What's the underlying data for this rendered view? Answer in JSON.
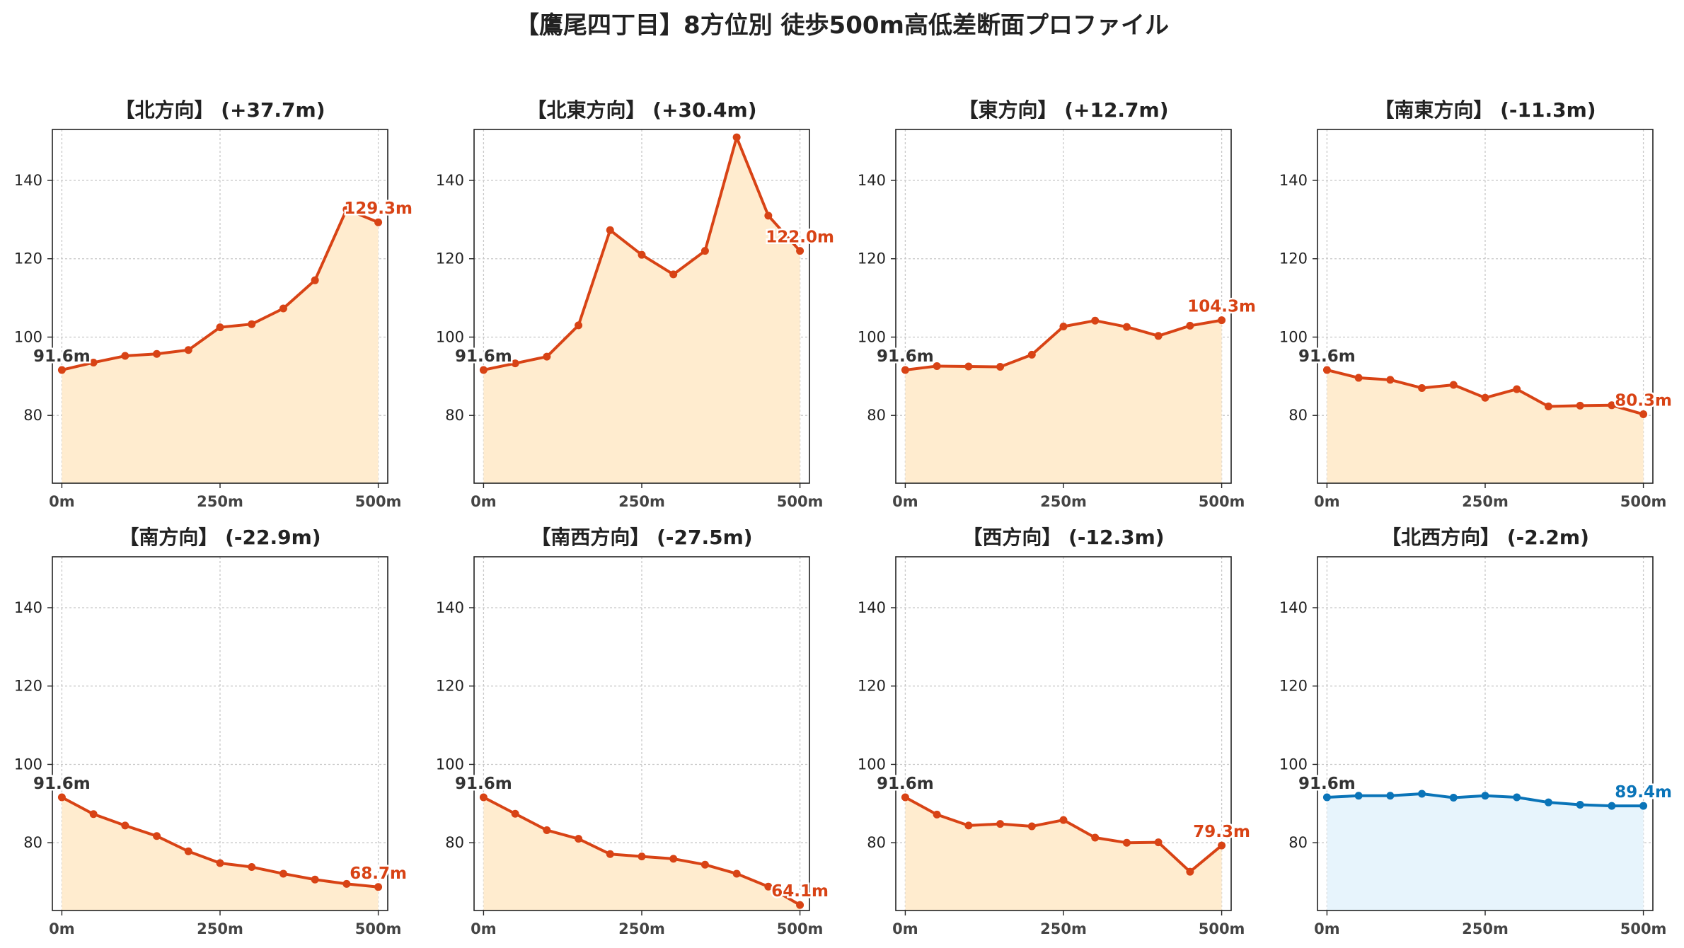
{
  "figure": {
    "title": "【鷹尾四丁目】8方位別 徒歩500m高低差断面プロファイル"
  },
  "colors": {
    "rise": "#d84315",
    "rise_fill": "#ffeccf",
    "flat": "#0a74b8",
    "flat_fill": "#e7f4fc",
    "start_label": "#333333",
    "grid": "#c8c8c8",
    "axis": "#222222"
  },
  "chart_data": [
    {
      "type": "area",
      "title": "【北方向】 (+37.7m)",
      "x": [
        0,
        50,
        100,
        150,
        200,
        250,
        300,
        350,
        400,
        450,
        500
      ],
      "y": [
        91.6,
        93.5,
        95.2,
        95.7,
        96.7,
        102.5,
        103.3,
        107.3,
        114.5,
        132.6,
        129.3
      ],
      "color": "rise",
      "start_label": "91.6m",
      "end_label": "129.3m",
      "xticks": [
        {
          "v": 0,
          "label": "0m"
        },
        {
          "v": 250,
          "label": "250m"
        },
        {
          "v": 500,
          "label": "500m"
        }
      ],
      "yticks": [
        80,
        100,
        120,
        140
      ],
      "xlim": [
        -15,
        515
      ],
      "ylim": [
        62.7,
        153
      ],
      "grid": true
    },
    {
      "type": "area",
      "title": "【北東方向】 (+30.4m)",
      "x": [
        0,
        50,
        100,
        150,
        200,
        250,
        300,
        350,
        400,
        450,
        500
      ],
      "y": [
        91.6,
        93.3,
        95.0,
        103.0,
        127.3,
        121.0,
        116.0,
        122.0,
        151.0,
        131.0,
        122.0
      ],
      "color": "rise",
      "start_label": "91.6m",
      "end_label": "122.0m",
      "xticks": [
        {
          "v": 0,
          "label": "0m"
        },
        {
          "v": 250,
          "label": "250m"
        },
        {
          "v": 500,
          "label": "500m"
        }
      ],
      "yticks": [
        80,
        100,
        120,
        140
      ],
      "xlim": [
        -15,
        515
      ],
      "ylim": [
        62.7,
        153
      ],
      "grid": true
    },
    {
      "type": "area",
      "title": "【東方向】 (+12.7m)",
      "x": [
        0,
        50,
        100,
        150,
        200,
        250,
        300,
        350,
        400,
        450,
        500
      ],
      "y": [
        91.6,
        92.6,
        92.5,
        92.4,
        95.5,
        102.7,
        104.2,
        102.6,
        100.3,
        102.9,
        104.3
      ],
      "color": "rise",
      "start_label": "91.6m",
      "end_label": "104.3m",
      "xticks": [
        {
          "v": 0,
          "label": "0m"
        },
        {
          "v": 250,
          "label": "250m"
        },
        {
          "v": 500,
          "label": "500m"
        }
      ],
      "yticks": [
        80,
        100,
        120,
        140
      ],
      "xlim": [
        -15,
        515
      ],
      "ylim": [
        62.7,
        153
      ],
      "grid": true
    },
    {
      "type": "area",
      "title": "【南東方向】 (-11.3m)",
      "x": [
        0,
        50,
        100,
        150,
        200,
        250,
        300,
        350,
        400,
        450,
        500
      ],
      "y": [
        91.6,
        89.6,
        89.1,
        87.0,
        87.8,
        84.5,
        86.7,
        82.3,
        82.5,
        82.6,
        80.3
      ],
      "color": "rise",
      "start_label": "91.6m",
      "end_label": "80.3m",
      "xticks": [
        {
          "v": 0,
          "label": "0m"
        },
        {
          "v": 250,
          "label": "250m"
        },
        {
          "v": 500,
          "label": "500m"
        }
      ],
      "yticks": [
        80,
        100,
        120,
        140
      ],
      "xlim": [
        -15,
        515
      ],
      "ylim": [
        62.7,
        153
      ],
      "grid": true
    },
    {
      "type": "area",
      "title": "【南方向】 (-22.9m)",
      "x": [
        0,
        50,
        100,
        150,
        200,
        250,
        300,
        350,
        400,
        450,
        500
      ],
      "y": [
        91.6,
        87.3,
        84.4,
        81.7,
        77.8,
        74.8,
        73.8,
        72.1,
        70.6,
        69.5,
        68.7
      ],
      "color": "rise",
      "start_label": "91.6m",
      "end_label": "68.7m",
      "xticks": [
        {
          "v": 0,
          "label": "0m"
        },
        {
          "v": 250,
          "label": "250m"
        },
        {
          "v": 500,
          "label": "500m"
        }
      ],
      "yticks": [
        80,
        100,
        120,
        140
      ],
      "xlim": [
        -15,
        515
      ],
      "ylim": [
        62.7,
        153
      ],
      "grid": true
    },
    {
      "type": "area",
      "title": "【南西方向】 (-27.5m)",
      "x": [
        0,
        50,
        100,
        150,
        200,
        250,
        300,
        350,
        400,
        450,
        500
      ],
      "y": [
        91.6,
        87.4,
        83.2,
        81.0,
        77.1,
        76.5,
        75.9,
        74.4,
        72.1,
        68.8,
        64.1
      ],
      "color": "rise",
      "start_label": "91.6m",
      "end_label": "64.1m",
      "xticks": [
        {
          "v": 0,
          "label": "0m"
        },
        {
          "v": 250,
          "label": "250m"
        },
        {
          "v": 500,
          "label": "500m"
        }
      ],
      "yticks": [
        80,
        100,
        120,
        140
      ],
      "xlim": [
        -15,
        515
      ],
      "ylim": [
        62.7,
        153
      ],
      "grid": true
    },
    {
      "type": "area",
      "title": "【西方向】 (-12.3m)",
      "x": [
        0,
        50,
        100,
        150,
        200,
        250,
        300,
        350,
        400,
        450,
        500
      ],
      "y": [
        91.6,
        87.2,
        84.4,
        84.8,
        84.2,
        85.8,
        81.3,
        80.0,
        80.1,
        72.6,
        79.3
      ],
      "color": "rise",
      "start_label": "91.6m",
      "end_label": "79.3m",
      "xticks": [
        {
          "v": 0,
          "label": "0m"
        },
        {
          "v": 250,
          "label": "250m"
        },
        {
          "v": 500,
          "label": "500m"
        }
      ],
      "yticks": [
        80,
        100,
        120,
        140
      ],
      "xlim": [
        -15,
        515
      ],
      "ylim": [
        62.7,
        153
      ],
      "grid": true
    },
    {
      "type": "area",
      "title": "【北西方向】 (-2.2m)",
      "x": [
        0,
        50,
        100,
        150,
        200,
        250,
        300,
        350,
        400,
        450,
        500
      ],
      "y": [
        91.6,
        92.0,
        92.0,
        92.5,
        91.5,
        92.0,
        91.6,
        90.3,
        89.7,
        89.4,
        89.4
      ],
      "color": "flat",
      "start_label": "91.6m",
      "end_label": "89.4m",
      "xticks": [
        {
          "v": 0,
          "label": "0m"
        },
        {
          "v": 250,
          "label": "250m"
        },
        {
          "v": 500,
          "label": "500m"
        }
      ],
      "yticks": [
        80,
        100,
        120,
        140
      ],
      "xlim": [
        -15,
        515
      ],
      "ylim": [
        62.7,
        153
      ],
      "grid": true
    }
  ]
}
